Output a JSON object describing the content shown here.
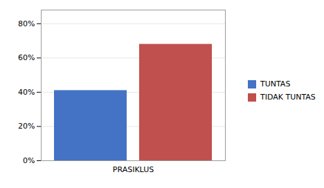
{
  "chart_data": {
    "type": "bar",
    "categories": [
      "PRASIKLUS"
    ],
    "series": [
      {
        "name": "TUNTAS",
        "color": "#4472C4",
        "values": [
          0.41
        ]
      },
      {
        "name": "TIDAK TUNTAS",
        "color": "#C0504D",
        "values": [
          0.68
        ]
      }
    ],
    "ylim": [
      0,
      0.88
    ],
    "yticks": [
      {
        "value": 0,
        "label": "0%"
      },
      {
        "value": 0.2,
        "label": "20%"
      },
      {
        "value": 0.4,
        "label": "40%"
      },
      {
        "value": 0.6,
        "label": "60%"
      },
      {
        "value": 0.8,
        "label": "80%"
      }
    ],
    "grid": true,
    "legend": "right"
  }
}
